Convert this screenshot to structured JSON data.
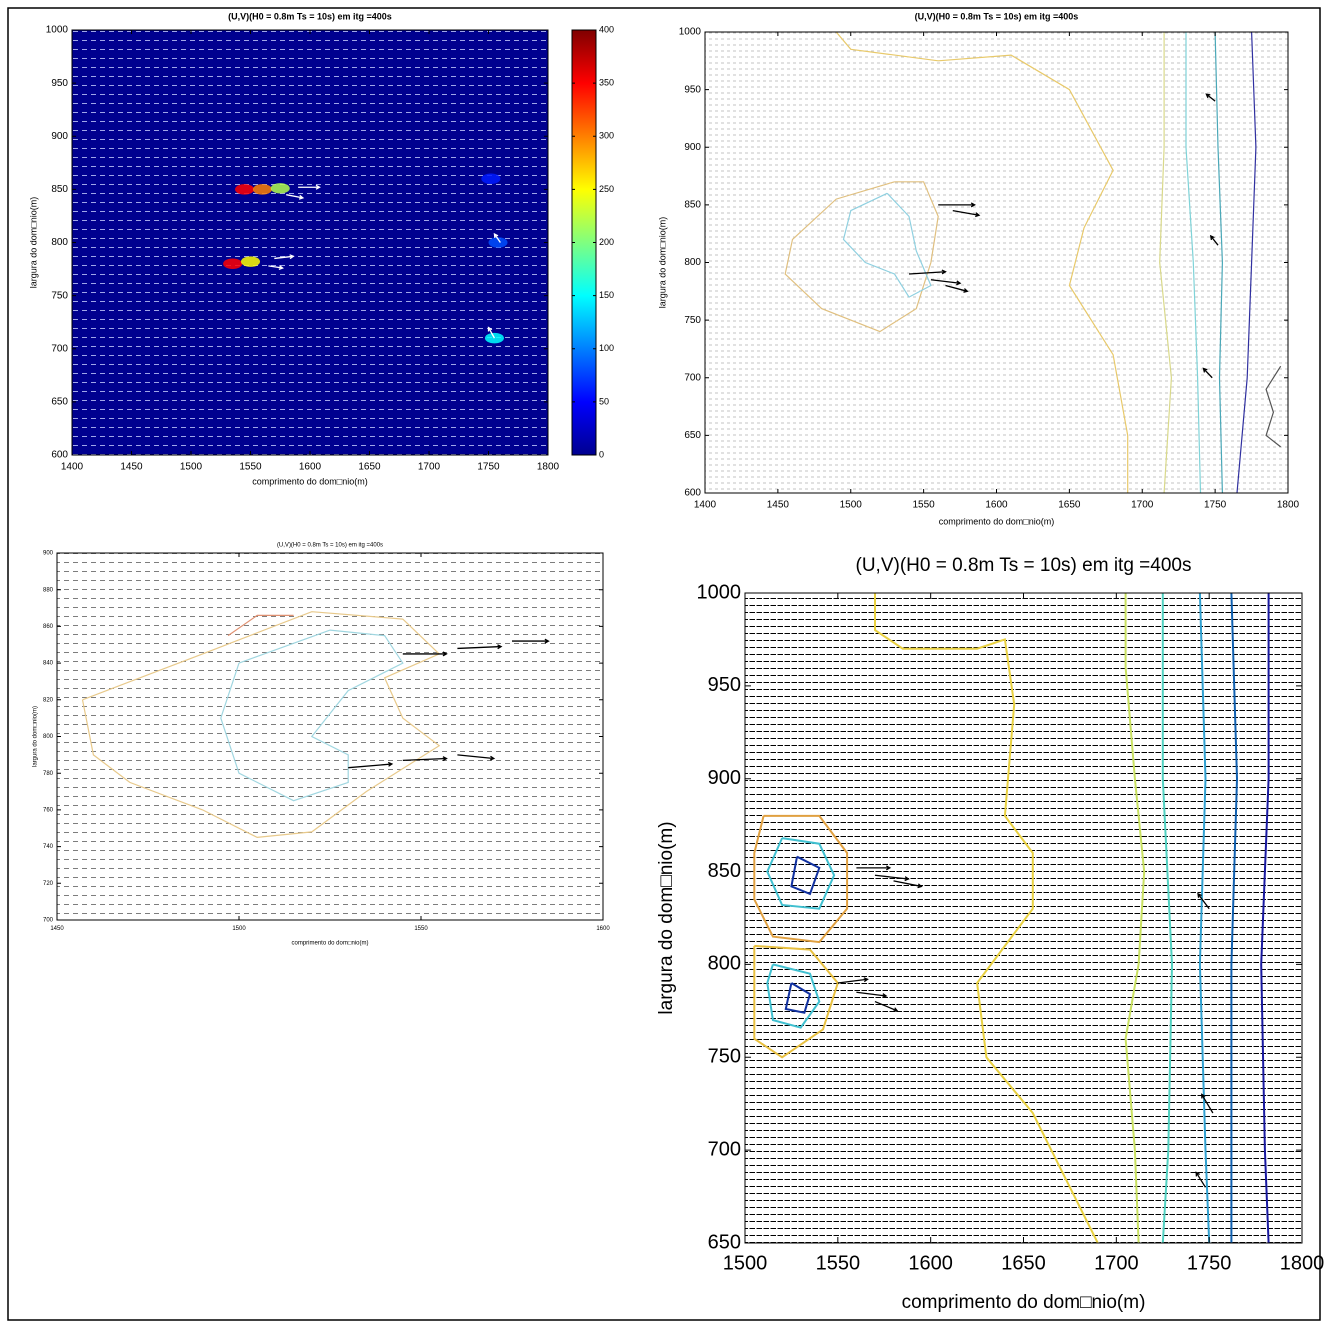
{
  "chart_data": [
    {
      "type": "quiver",
      "title": "(U,V)(H0 = 0.8m Ts = 10s) em itg =400s",
      "xlabel": "comprimento do dom□nio(m)",
      "ylabel": "largura do dom□nio(m)",
      "xlim": [
        1400,
        1800
      ],
      "xticks": [
        1400,
        1450,
        1500,
        1550,
        1600,
        1650,
        1700,
        1750,
        1800
      ],
      "ylim": [
        600,
        1000
      ],
      "yticks": [
        600,
        650,
        700,
        750,
        800,
        850,
        900,
        950,
        1000
      ],
      "background": "#00008f",
      "colormap": "jet",
      "clim": [
        0,
        400
      ],
      "cticks": [
        0,
        50,
        100,
        150,
        200,
        250,
        300,
        350,
        400
      ],
      "heat": {
        "x": [
          1545,
          1560,
          1575,
          1535,
          1550,
          1755,
          1758,
          1752
        ],
        "y": [
          850,
          850,
          851,
          780,
          782,
          710,
          800,
          860
        ],
        "values": [
          350,
          300,
          220,
          350,
          250,
          150,
          80,
          60
        ]
      },
      "vectors": {
        "x": [
          1590,
          1580,
          1570,
          1565,
          1760,
          1755
        ],
        "y": [
          852,
          845,
          785,
          778,
          800,
          710
        ],
        "u": [
          18,
          14,
          16,
          12,
          -5,
          -5
        ],
        "v": [
          0,
          -3,
          2,
          -2,
          8,
          10
        ],
        "color": "#ffffff"
      }
    },
    {
      "type": "quiver",
      "title": "(U,V)(H0 = 0.8m Ts = 10s) em itg =400s",
      "xlabel": "comprimento do dom□nio(m)",
      "ylabel": "largura do dom□nio(m)",
      "xlim": [
        1400,
        1800
      ],
      "xticks": [
        1400,
        1450,
        1500,
        1550,
        1600,
        1650,
        1700,
        1750,
        1800
      ],
      "ylim": [
        600,
        1000
      ],
      "yticks": [
        600,
        650,
        700,
        750,
        800,
        850,
        900,
        950,
        1000
      ],
      "series": [
        {
          "color": "#e8c96a",
          "x": [
            1490,
            1500,
            1560,
            1610,
            1650,
            1680,
            1660,
            1650,
            1680,
            1690,
            1690
          ],
          "y": [
            1000,
            985,
            975,
            980,
            950,
            880,
            830,
            780,
            720,
            650,
            600
          ]
        },
        {
          "color": "#d9d98a",
          "x": [
            1715,
            1715,
            1712,
            1720,
            1715
          ],
          "y": [
            1000,
            900,
            800,
            700,
            600
          ]
        },
        {
          "color": "#7fd3d8",
          "x": [
            1730,
            1730,
            1735,
            1738,
            1740
          ],
          "y": [
            1000,
            900,
            800,
            700,
            600
          ]
        },
        {
          "color": "#4aa8b8",
          "x": [
            1750,
            1752,
            1755,
            1753,
            1755
          ],
          "y": [
            1000,
            900,
            800,
            700,
            600
          ]
        },
        {
          "color": "#3030a0",
          "x": [
            1775,
            1778,
            1775,
            1772,
            1765
          ],
          "y": [
            1000,
            900,
            800,
            700,
            600
          ]
        },
        {
          "color": "#555555",
          "x": [
            1795,
            1785,
            1790,
            1785,
            1795
          ],
          "y": [
            710,
            690,
            670,
            650,
            640
          ]
        },
        {
          "color": "#e0c080",
          "x": [
            1530,
            1490,
            1460,
            1455,
            1480,
            1520,
            1545,
            1555,
            1560,
            1550,
            1530
          ],
          "y": [
            870,
            855,
            820,
            790,
            760,
            740,
            760,
            800,
            840,
            870,
            870
          ]
        },
        {
          "color": "#8fd0e0",
          "x": [
            1525,
            1500,
            1495,
            1510,
            1530,
            1540,
            1555,
            1545,
            1540,
            1525
          ],
          "y": [
            860,
            845,
            820,
            800,
            790,
            770,
            780,
            810,
            840,
            860
          ]
        }
      ],
      "vectors": {
        "x": [
          1560,
          1570,
          1540,
          1555,
          1565,
          1750,
          1752,
          1748
        ],
        "y": [
          850,
          845,
          790,
          785,
          780,
          940,
          815,
          700
        ],
        "u": [
          25,
          18,
          25,
          20,
          15,
          -6,
          -5,
          -6
        ],
        "v": [
          0,
          -4,
          2,
          -3,
          -5,
          6,
          8,
          8
        ],
        "color": "#000000"
      }
    },
    {
      "type": "quiver",
      "title": "(U,V)(H0 = 0.8m Ts = 10s) em itg =400s",
      "xlabel": "comprimento do dom□nio(m)",
      "ylabel": "largura do dom□nio(m)",
      "xlim": [
        1450,
        1600
      ],
      "xticks": [
        1450,
        1500,
        1550,
        1600
      ],
      "ylim": [
        700,
        900
      ],
      "yticks": [
        700,
        720,
        740,
        760,
        780,
        800,
        820,
        840,
        860,
        880,
        900
      ],
      "series": [
        {
          "color": "#e8c98a",
          "x": [
            1457,
            1490,
            1520,
            1545,
            1555,
            1540,
            1545,
            1555,
            1535,
            1520,
            1505,
            1490,
            1470,
            1460,
            1457
          ],
          "y": [
            820,
            845,
            868,
            864,
            845,
            832,
            810,
            795,
            770,
            748,
            745,
            760,
            775,
            790,
            820
          ]
        },
        {
          "color": "#9fd6e0",
          "x": [
            1500,
            1525,
            1540,
            1545,
            1530,
            1520,
            1530,
            1530,
            1515,
            1500,
            1495,
            1500
          ],
          "y": [
            840,
            858,
            855,
            840,
            825,
            800,
            790,
            775,
            765,
            780,
            810,
            840
          ]
        },
        {
          "color": "#e09070",
          "x": [
            1497,
            1505,
            1515
          ],
          "y": [
            855,
            866,
            866
          ]
        }
      ],
      "vectors": {
        "x": [
          1545,
          1560,
          1575,
          1530,
          1545,
          1560
        ],
        "y": [
          845,
          848,
          852,
          783,
          787,
          790
        ],
        "u": [
          12,
          12,
          10,
          12,
          12,
          10
        ],
        "v": [
          0,
          1,
          0,
          2,
          1,
          -2
        ],
        "color": "#000000"
      }
    },
    {
      "type": "quiver",
      "title": "(U,V)(H0 = 0.8m Ts = 10s) em itg =400s",
      "xlabel": "comprimento do dom□nio(m)",
      "ylabel": "largura do dom□nio(m)",
      "xlim": [
        1500,
        1800
      ],
      "xticks": [
        1500,
        1550,
        1600,
        1650,
        1700,
        1750,
        1800
      ],
      "ylim": [
        650,
        1000
      ],
      "yticks": [
        650,
        700,
        750,
        800,
        850,
        900,
        950,
        1000
      ],
      "series": [
        {
          "color": "#e8d040",
          "x": [
            1570,
            1570,
            1585,
            1625,
            1640,
            1645,
            1640,
            1655,
            1655,
            1640,
            1625,
            1630,
            1655,
            1670,
            1690
          ],
          "y": [
            1000,
            980,
            970,
            970,
            975,
            940,
            880,
            860,
            830,
            810,
            790,
            750,
            720,
            690,
            650
          ]
        },
        {
          "color": "#c8e060",
          "x": [
            1705,
            1705,
            1710,
            1715,
            1712,
            1705,
            1710,
            1712
          ],
          "y": [
            1000,
            960,
            900,
            850,
            800,
            760,
            700,
            650
          ]
        },
        {
          "color": "#50d0c0",
          "x": [
            1725,
            1725,
            1730,
            1728,
            1725
          ],
          "y": [
            1000,
            900,
            800,
            700,
            650
          ]
        },
        {
          "color": "#30a0d0",
          "x": [
            1745,
            1748,
            1745,
            1748,
            1750
          ],
          "y": [
            1000,
            900,
            800,
            700,
            650
          ]
        },
        {
          "color": "#1060b0",
          "x": [
            1762,
            1765,
            1762,
            1762,
            1762
          ],
          "y": [
            1000,
            900,
            800,
            700,
            650
          ]
        },
        {
          "color": "#1818a0",
          "x": [
            1782,
            1782,
            1778,
            1780,
            1782
          ],
          "y": [
            1000,
            900,
            800,
            700,
            650
          ]
        },
        {
          "color": "#e0a040",
          "x": [
            1510,
            1540,
            1555,
            1555,
            1540,
            1515,
            1505,
            1505,
            1510
          ],
          "y": [
            880,
            880,
            860,
            830,
            812,
            815,
            835,
            860,
            880
          ]
        },
        {
          "color": "#40c0d0",
          "x": [
            1520,
            1540,
            1548,
            1540,
            1520,
            1512,
            1520
          ],
          "y": [
            868,
            865,
            848,
            830,
            832,
            850,
            868
          ]
        },
        {
          "color": "#1030a0",
          "x": [
            1528,
            1540,
            1535,
            1525,
            1528
          ],
          "y": [
            858,
            852,
            838,
            842,
            858
          ]
        },
        {
          "color": "#e8c040",
          "x": [
            1505,
            1535,
            1550,
            1542,
            1520,
            1505,
            1505
          ],
          "y": [
            810,
            808,
            790,
            765,
            750,
            760,
            810
          ]
        },
        {
          "color": "#40c0d0",
          "x": [
            1515,
            1535,
            1540,
            1530,
            1515,
            1512,
            1515
          ],
          "y": [
            800,
            795,
            780,
            766,
            770,
            790,
            800
          ]
        },
        {
          "color": "#1030a0",
          "x": [
            1525,
            1535,
            1532,
            1522,
            1525
          ],
          "y": [
            790,
            784,
            774,
            776,
            790
          ]
        }
      ],
      "vectors": {
        "x": [
          1560,
          1570,
          1580,
          1550,
          1560,
          1570,
          1750,
          1752,
          1748
        ],
        "y": [
          852,
          848,
          845,
          790,
          785,
          780,
          830,
          720,
          680
        ],
        "u": [
          18,
          18,
          15,
          16,
          16,
          12,
          -6,
          -6,
          -5
        ],
        "v": [
          0,
          -2,
          -3,
          2,
          -2,
          -5,
          8,
          10,
          8
        ],
        "color": "#000000"
      }
    }
  ]
}
